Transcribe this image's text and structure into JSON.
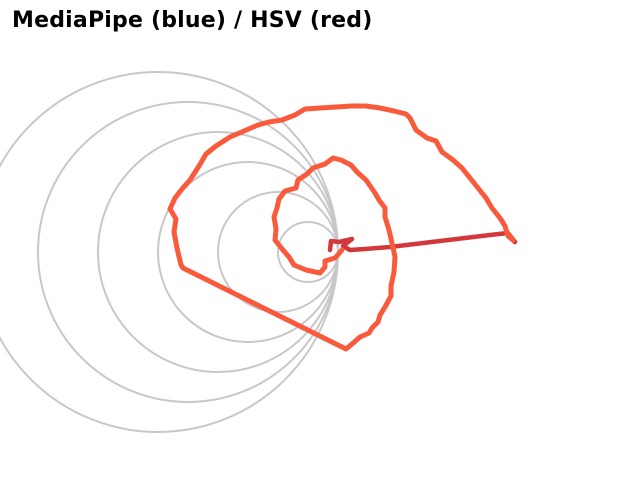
{
  "window": {
    "title": "MediaPipe (blue) / HSV (red)"
  },
  "colors": {
    "background": "#ffffff",
    "title_text": "#000000",
    "guide_spiral": "#c8c8c8",
    "hsv_trace": "#fa5a3c",
    "hsv_tail": "#d2373c"
  },
  "legend": {
    "mediapipe": "blue",
    "hsv": "red"
  }
}
